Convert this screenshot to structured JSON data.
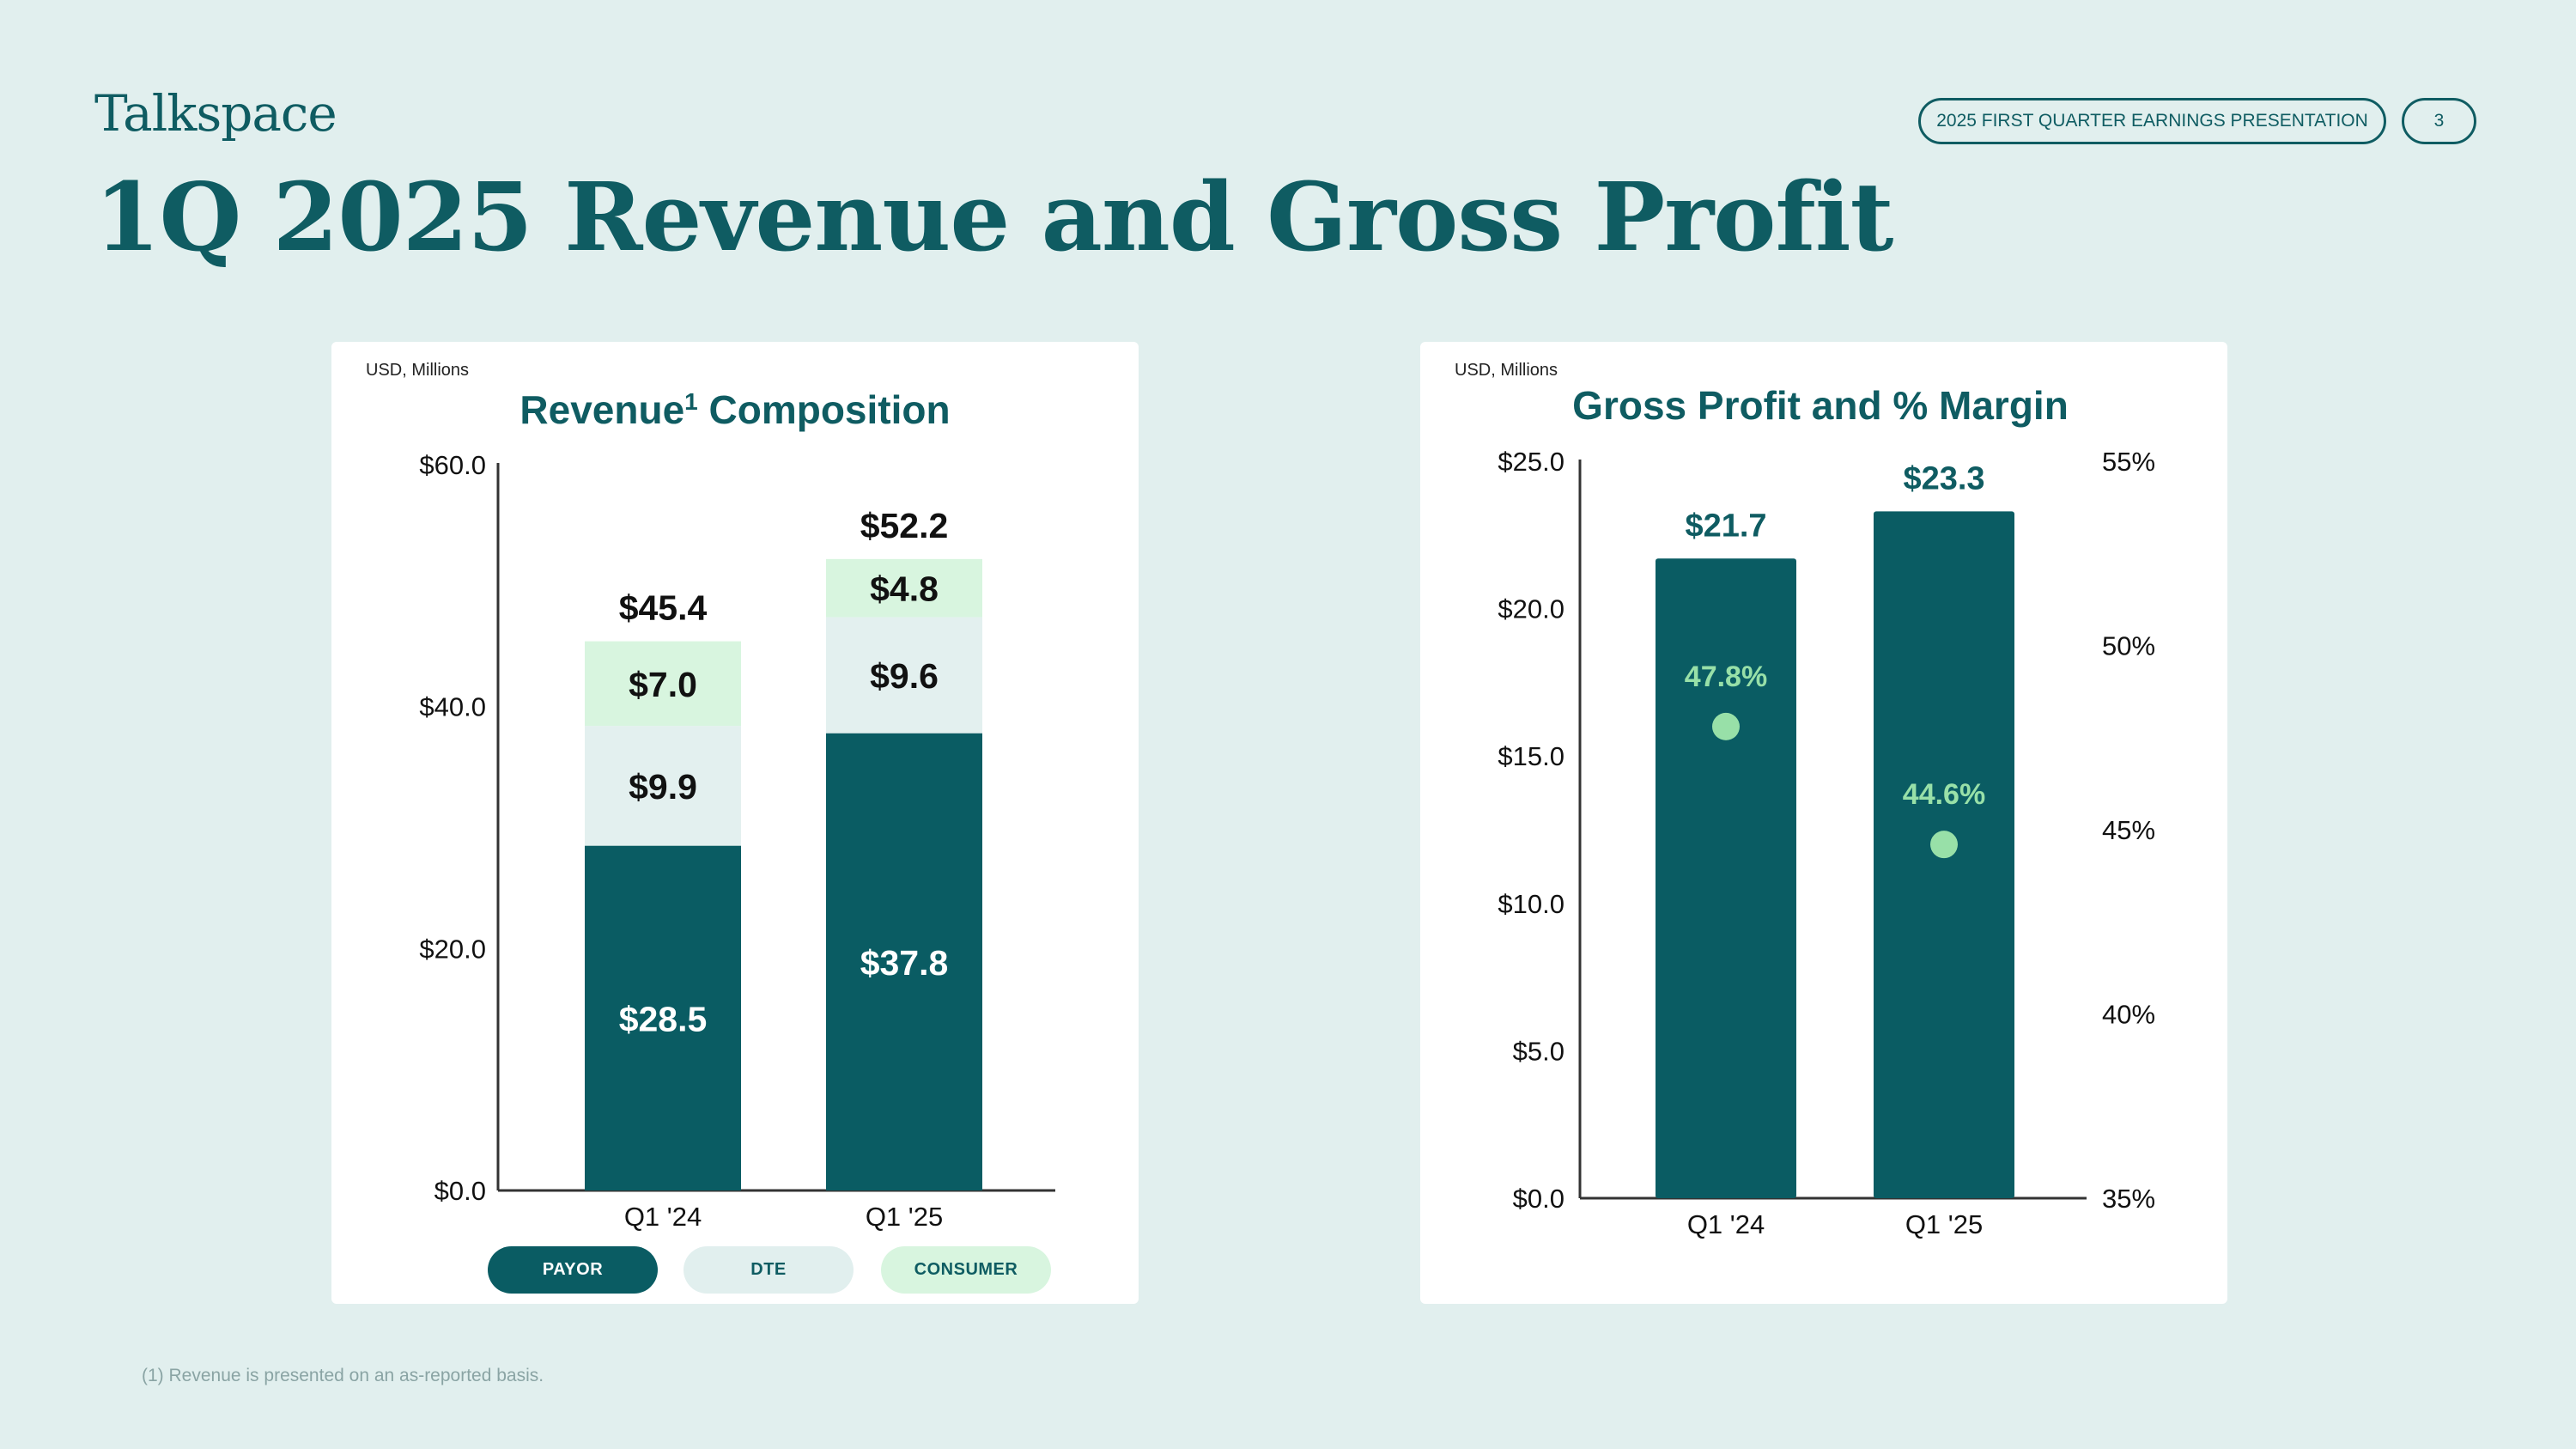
{
  "header": {
    "logo": "Talkspace",
    "presentation_label": "2025 FIRST QUARTER EARNINGS PRESENTATION",
    "page_number": "3",
    "title": "1Q 2025 Revenue and Gross Profit"
  },
  "colors": {
    "payor": "#0a5c63",
    "dte": "#e3f0ef",
    "consumer": "#d8f5df",
    "margin_dot": "#98e0a8",
    "title_teal": "#0f5c62"
  },
  "chart_data": [
    {
      "type": "bar",
      "stacked": true,
      "unit_note": "USD, Millions",
      "title": "Revenue",
      "title_superscript": "1",
      "title_suffix": "Composition",
      "categories": [
        "Q1 '24",
        "Q1 '25"
      ],
      "series": [
        {
          "name": "PAYOR",
          "values": [
            28.5,
            37.8
          ],
          "labels": [
            "$28.5",
            "$37.8"
          ]
        },
        {
          "name": "DTE",
          "values": [
            9.9,
            9.6
          ],
          "labels": [
            "$9.9",
            "$9.6"
          ]
        },
        {
          "name": "CONSUMER",
          "values": [
            7.0,
            4.8
          ],
          "labels": [
            "$7.0",
            "$4.8"
          ]
        }
      ],
      "totals": [
        45.4,
        52.2
      ],
      "total_labels": [
        "$45.4",
        "$52.2"
      ],
      "ylim": [
        0,
        60
      ],
      "yticks": [
        0,
        20,
        40,
        60
      ],
      "ytick_labels": [
        "$0.0",
        "$20.0",
        "$40.0",
        "$60.0"
      ],
      "legend": [
        "PAYOR",
        "DTE",
        "CONSUMER"
      ],
      "legend_position": "bottom"
    },
    {
      "type": "bar",
      "unit_note": "USD, Millions",
      "title": "Gross Profit and % Margin",
      "categories": [
        "Q1 '24",
        "Q1 '25"
      ],
      "values": [
        21.7,
        23.3
      ],
      "value_labels": [
        "$21.7",
        "$23.3"
      ],
      "ylim": [
        0,
        25
      ],
      "yticks": [
        0,
        5,
        10,
        15,
        20,
        25
      ],
      "ytick_labels": [
        "$0.0",
        "$5.0",
        "$10.0",
        "$15.0",
        "$20.0",
        "$25.0"
      ],
      "secondary_series": {
        "name": "% Margin",
        "type": "scatter",
        "values": [
          47.8,
          44.6
        ],
        "labels": [
          "47.8%",
          "44.6%"
        ]
      },
      "y2lim": [
        35,
        55
      ],
      "y2ticks": [
        35,
        40,
        45,
        50,
        55
      ],
      "y2tick_labels": [
        "35%",
        "40%",
        "45%",
        "50%",
        "55%"
      ]
    }
  ],
  "footnote": "(1) Revenue is presented on an as-reported basis."
}
